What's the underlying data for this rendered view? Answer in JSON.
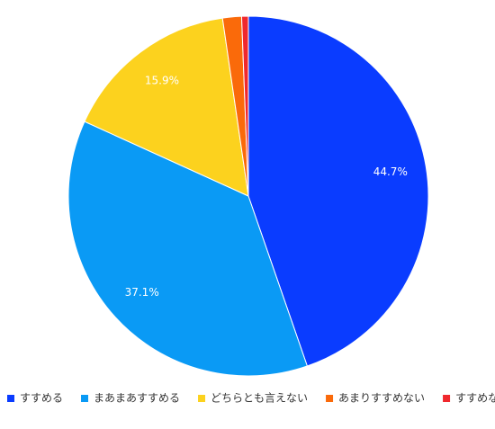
{
  "chart_data": {
    "type": "pie",
    "categories": [
      "すすめる",
      "まあまあすすめる",
      "どちらとも言えない",
      "あまりすすめない",
      "すすめない"
    ],
    "values": [
      44.7,
      37.1,
      15.9,
      1.7,
      0.6
    ],
    "value_labels": [
      "44.7%",
      "37.1%",
      "15.9%",
      null,
      null
    ],
    "colors": [
      "#0a3cff",
      "#0a9af5",
      "#fcd21e",
      "#fa6a0a",
      "#f0282d"
    ],
    "legend": "bottom"
  }
}
